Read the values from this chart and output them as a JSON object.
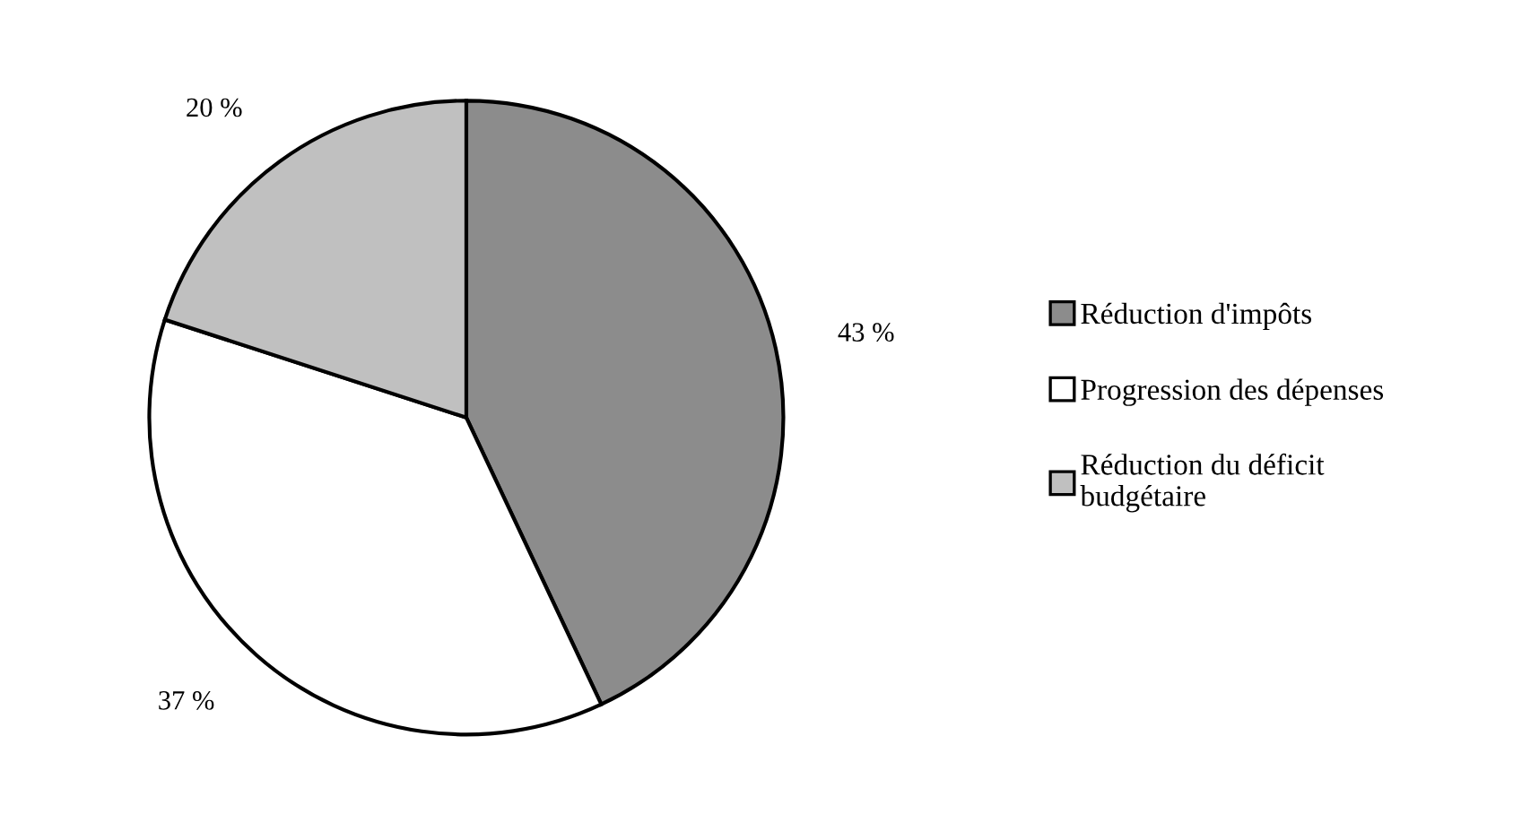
{
  "chart_data": {
    "type": "pie",
    "categories": [
      "Réduction d'impôts",
      "Progression des dépenses",
      "Réduction du déficit\nbudgétaire"
    ],
    "values": [
      43,
      37,
      20
    ],
    "colors": [
      "#8c8c8c",
      "#ffffff",
      "#c0c0c0"
    ],
    "value_labels": [
      "43 %",
      "37 %",
      "20 %"
    ],
    "legend": "right"
  }
}
